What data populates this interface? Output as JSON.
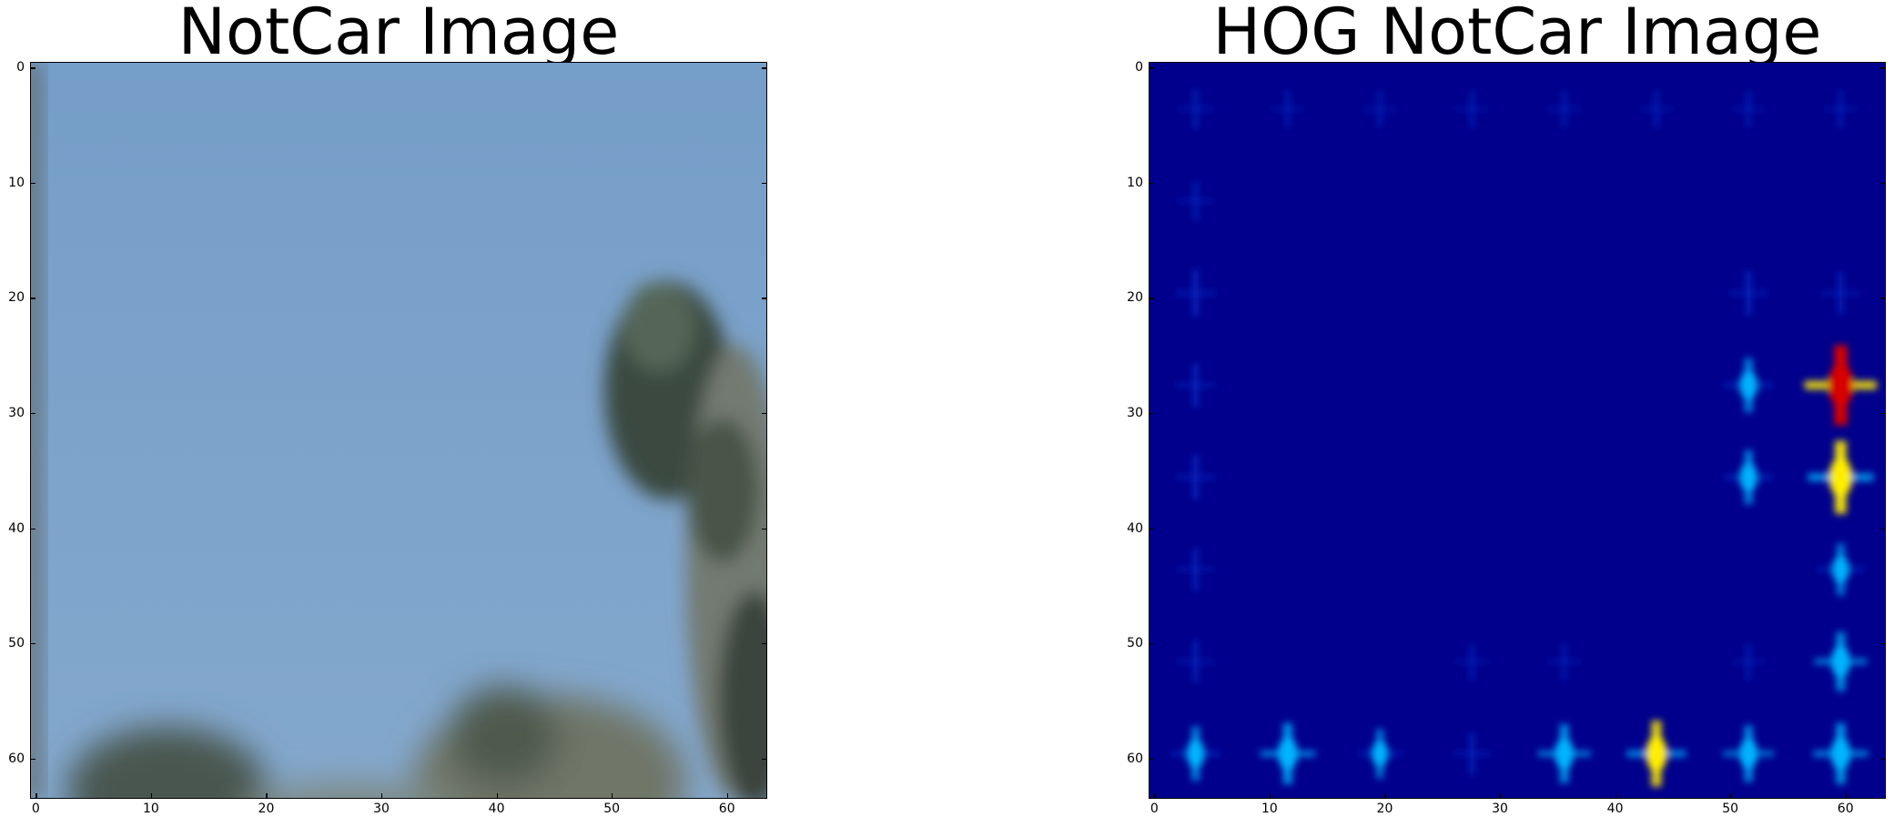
{
  "panels": [
    {
      "id": "left",
      "title": "NotCar Image",
      "x_ticks": [
        "0",
        "10",
        "20",
        "30",
        "40",
        "50",
        "60"
      ],
      "y_ticks": [
        "0",
        "10",
        "20",
        "30",
        "40",
        "50",
        "60"
      ]
    },
    {
      "id": "right",
      "title": "HOG NotCar Image",
      "x_ticks": [
        "0",
        "10",
        "20",
        "30",
        "40",
        "50",
        "60"
      ],
      "y_ticks": [
        "0",
        "10",
        "20",
        "30",
        "40",
        "50",
        "60"
      ]
    }
  ],
  "colors": {
    "sky": "#7aa1c9",
    "foliage_dark": "#2f3a33",
    "foliage_mid": "#7f8a7d",
    "hog_background": "#00008c",
    "hog_cell_weak": "#0a2ec8",
    "hog_cell_mid": "#00b4ff",
    "hog_cell_strong": "#ffee00",
    "hog_cell_peak": "#d80000"
  },
  "hog_cells": [
    {
      "col": 0,
      "row": 0,
      "level": 0.15
    },
    {
      "col": 1,
      "row": 0,
      "level": 0.1
    },
    {
      "col": 2,
      "row": 0,
      "level": 0.1
    },
    {
      "col": 3,
      "row": 0,
      "level": 0.1
    },
    {
      "col": 4,
      "row": 0,
      "level": 0.1
    },
    {
      "col": 5,
      "row": 0,
      "level": 0.1
    },
    {
      "col": 6,
      "row": 0,
      "level": 0.1
    },
    {
      "col": 7,
      "row": 0,
      "level": 0.1
    },
    {
      "col": 0,
      "row": 1,
      "level": 0.15
    },
    {
      "col": 0,
      "row": 2,
      "level": 0.3
    },
    {
      "col": 6,
      "row": 2,
      "level": 0.25
    },
    {
      "col": 7,
      "row": 2,
      "level": 0.2
    },
    {
      "col": 0,
      "row": 3,
      "level": 0.25
    },
    {
      "col": 6,
      "row": 3,
      "level": 0.45
    },
    {
      "col": 7,
      "row": 3,
      "level": 1.0
    },
    {
      "col": 0,
      "row": 4,
      "level": 0.25
    },
    {
      "col": 6,
      "row": 4,
      "level": 0.45
    },
    {
      "col": 7,
      "row": 4,
      "level": 0.85
    },
    {
      "col": 0,
      "row": 5,
      "level": 0.2
    },
    {
      "col": 7,
      "row": 5,
      "level": 0.4
    },
    {
      "col": 0,
      "row": 6,
      "level": 0.2
    },
    {
      "col": 3,
      "row": 6,
      "level": 0.1
    },
    {
      "col": 4,
      "row": 6,
      "level": 0.1
    },
    {
      "col": 6,
      "row": 6,
      "level": 0.1
    },
    {
      "col": 7,
      "row": 6,
      "level": 0.55
    },
    {
      "col": 0,
      "row": 7,
      "level": 0.45
    },
    {
      "col": 1,
      "row": 7,
      "level": 0.6
    },
    {
      "col": 2,
      "row": 7,
      "level": 0.35
    },
    {
      "col": 3,
      "row": 7,
      "level": 0.2
    },
    {
      "col": 4,
      "row": 7,
      "level": 0.55
    },
    {
      "col": 5,
      "row": 7,
      "level": 0.7
    },
    {
      "col": 6,
      "row": 7,
      "level": 0.5
    },
    {
      "col": 7,
      "row": 7,
      "level": 0.6
    }
  ]
}
